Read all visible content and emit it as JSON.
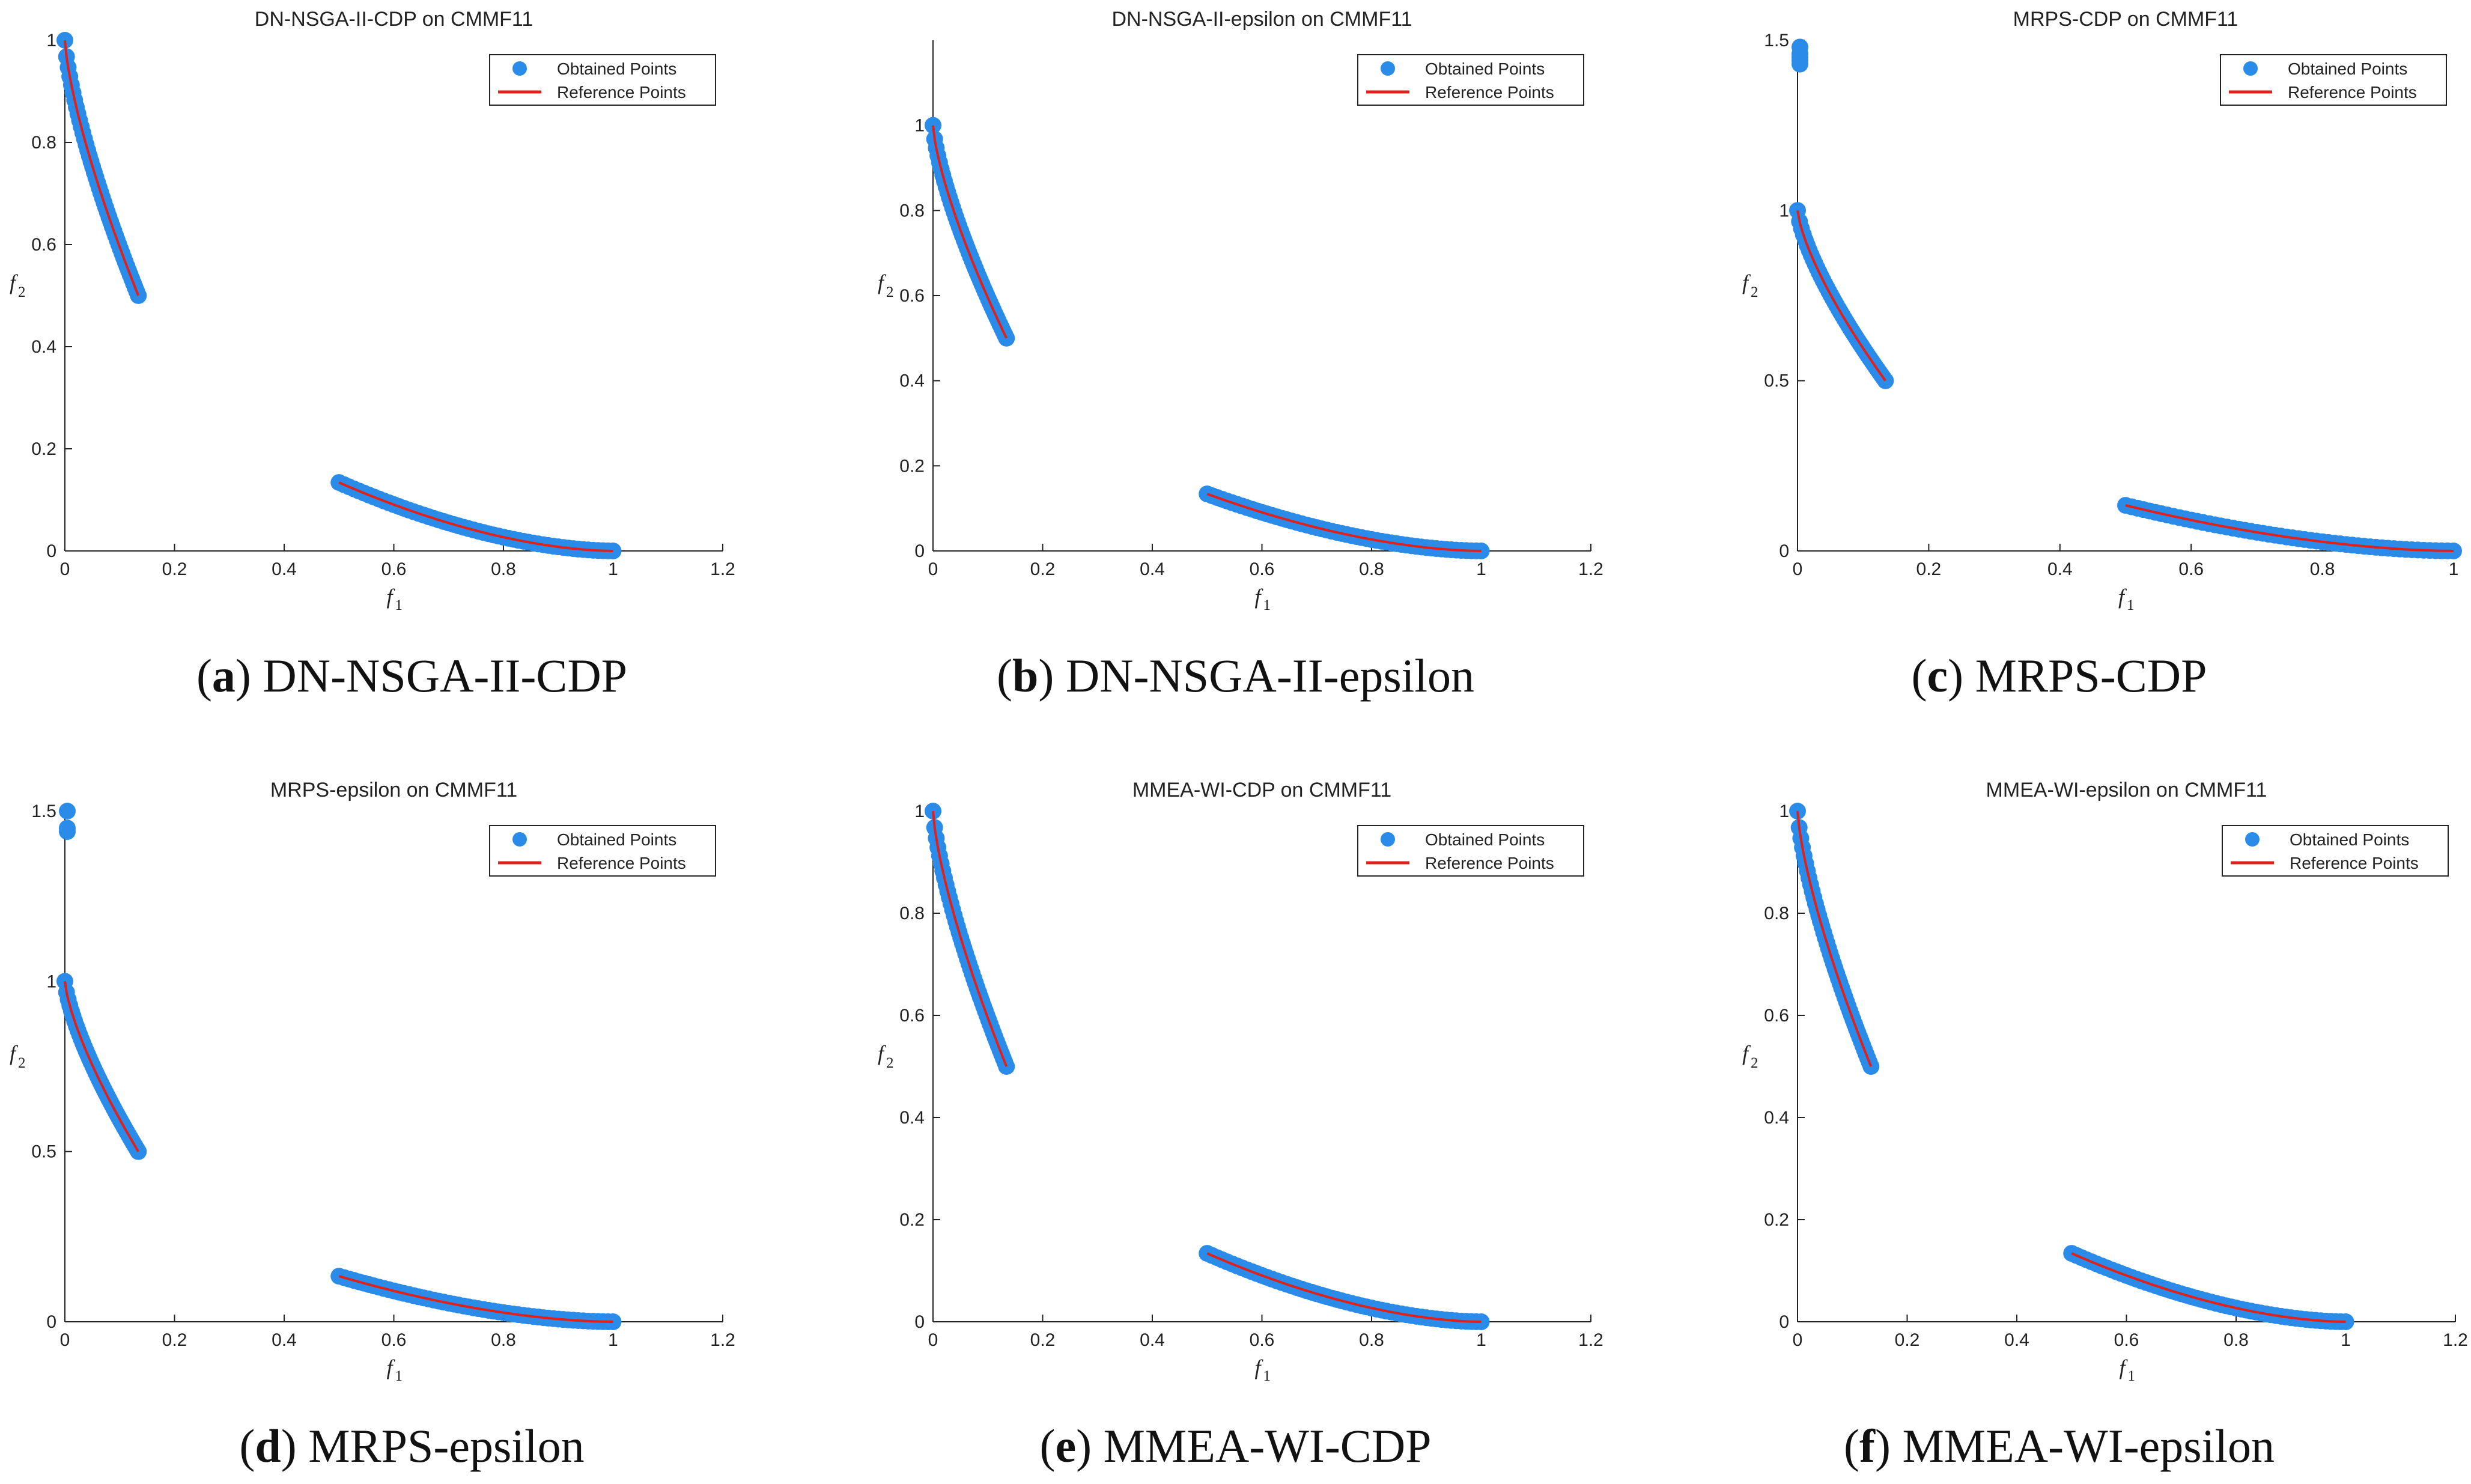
{
  "figure": {
    "marker_color": "#2a8be8",
    "reference_color": "#e0201b",
    "legend": {
      "obtained": "Obtained Points",
      "reference": "Reference Points"
    }
  },
  "chart_data": [
    {
      "id": "a",
      "type": "scatter",
      "title": "DN-NSGA-II-CDP on CMMF11",
      "caption_letter": "(a)",
      "caption_text": " DN-NSGA-II-CDP",
      "xlabel": "f",
      "xlabel_sub": "1",
      "ylabel": "f",
      "ylabel_sub": "2",
      "xlim": [
        0,
        1.2
      ],
      "ylim": [
        0,
        1
      ],
      "xticks": [
        0,
        0.2,
        0.4,
        0.6,
        0.8,
        1,
        1.2
      ],
      "yticks": [
        0,
        0.2,
        0.4,
        0.6,
        0.8,
        1
      ],
      "ytick_labels": [
        "0",
        "0.2",
        "0.4",
        "0.6",
        "0.8",
        "1"
      ],
      "xtick_labels": [
        "0",
        "0.2",
        "0.4",
        "0.6",
        "0.8",
        "1",
        "1.2"
      ],
      "outliers": []
    },
    {
      "id": "b",
      "type": "scatter",
      "title": "DN-NSGA-II-epsilon on CMMF11",
      "caption_letter": "(b)",
      "caption_text": " DN-NSGA-II-epsilon",
      "xlabel": "f",
      "xlabel_sub": "1",
      "ylabel": "f",
      "ylabel_sub": "2",
      "xlim": [
        0,
        1.2
      ],
      "ylim": [
        0,
        1.2
      ],
      "xticks": [
        0,
        0.2,
        0.4,
        0.6,
        0.8,
        1,
        1.2
      ],
      "yticks": [
        0,
        0.2,
        0.4,
        0.6,
        0.8,
        1
      ],
      "ytick_labels": [
        "0",
        "0.2",
        "0.4",
        "0.6",
        "0.8",
        "1"
      ],
      "xtick_labels": [
        "0",
        "0.2",
        "0.4",
        "0.6",
        "0.8",
        "1",
        "1.2"
      ],
      "outliers": []
    },
    {
      "id": "c",
      "type": "scatter",
      "title": "MRPS-CDP on CMMF11",
      "caption_letter": "(c)",
      "caption_text": " MRPS-CDP",
      "xlabel": "f",
      "xlabel_sub": "1",
      "ylabel": "f",
      "ylabel_sub": "2",
      "xlim": [
        0,
        1
      ],
      "ylim": [
        0,
        1.5
      ],
      "xticks": [
        0,
        0.2,
        0.4,
        0.6,
        0.8,
        1
      ],
      "yticks": [
        0,
        0.5,
        1,
        1.5
      ],
      "ytick_labels": [
        "0",
        "0.5",
        "1",
        "1.5"
      ],
      "xtick_labels": [
        "0",
        "0.2",
        "0.4",
        "0.6",
        "0.8",
        "1"
      ],
      "outliers": [
        [
          0.0,
          1.48
        ],
        [
          0.0,
          1.46
        ],
        [
          0.0,
          1.45
        ],
        [
          0.0,
          1.44
        ],
        [
          0.0,
          1.43
        ]
      ]
    },
    {
      "id": "d",
      "type": "scatter",
      "title": "MRPS-epsilon on CMMF11",
      "caption_letter": "(d)",
      "caption_text": " MRPS-epsilon",
      "xlabel": "f",
      "xlabel_sub": "1",
      "ylabel": "f",
      "ylabel_sub": "2",
      "xlim": [
        0,
        1.2
      ],
      "ylim": [
        0,
        1.5
      ],
      "xticks": [
        0,
        0.2,
        0.4,
        0.6,
        0.8,
        1,
        1.2
      ],
      "yticks": [
        0,
        0.5,
        1,
        1.5
      ],
      "ytick_labels": [
        "0",
        "0.5",
        "1",
        "1.5"
      ],
      "xtick_labels": [
        "0",
        "0.2",
        "0.4",
        "0.6",
        "0.8",
        "1",
        "1.2"
      ],
      "outliers": [
        [
          0.0,
          1.5
        ],
        [
          0.0,
          1.45
        ],
        [
          0.0,
          1.44
        ]
      ]
    },
    {
      "id": "e",
      "type": "scatter",
      "title": "MMEA-WI-CDP on CMMF11",
      "caption_letter": "(e)",
      "caption_text": " MMEA-WI-CDP",
      "xlabel": "f",
      "xlabel_sub": "1",
      "ylabel": "f",
      "ylabel_sub": "2",
      "xlim": [
        0,
        1.2
      ],
      "ylim": [
        0,
        1
      ],
      "xticks": [
        0,
        0.2,
        0.4,
        0.6,
        0.8,
        1,
        1.2
      ],
      "yticks": [
        0,
        0.2,
        0.4,
        0.6,
        0.8,
        1
      ],
      "ytick_labels": [
        "0",
        "0.2",
        "0.4",
        "0.6",
        "0.8",
        "1"
      ],
      "xtick_labels": [
        "0",
        "0.2",
        "0.4",
        "0.6",
        "0.8",
        "1",
        "1.2"
      ],
      "outliers": []
    },
    {
      "id": "f",
      "type": "scatter",
      "title": "MMEA-WI-epsilon on CMMF11",
      "caption_letter": "(f)",
      "caption_text": " MMEA-WI-epsilon",
      "xlabel": "f",
      "xlabel_sub": "1",
      "ylabel": "f",
      "ylabel_sub": "2",
      "xlim": [
        0,
        1.2
      ],
      "ylim": [
        0,
        1
      ],
      "xticks": [
        0,
        0.2,
        0.4,
        0.6,
        0.8,
        1,
        1.2
      ],
      "yticks": [
        0,
        0.2,
        0.4,
        0.6,
        0.8,
        1
      ],
      "ytick_labels": [
        "0",
        "0.2",
        "0.4",
        "0.6",
        "0.8",
        "1"
      ],
      "xtick_labels": [
        "0",
        "0.2",
        "0.4",
        "0.6",
        "0.8",
        "1",
        "1.2"
      ],
      "outliers": []
    }
  ],
  "front": {
    "segment1": {
      "f1_range": [
        0,
        0.134
      ],
      "f2_range": [
        1,
        0.5
      ]
    },
    "segment2": {
      "f1_range": [
        0.5,
        1
      ],
      "f2_range": [
        0.134,
        0
      ]
    }
  }
}
